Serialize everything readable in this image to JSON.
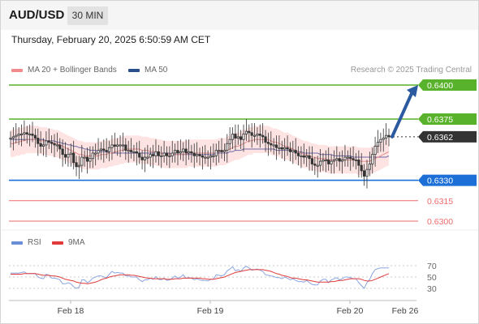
{
  "header": {
    "pair": "AUD/USD",
    "interval": "30 MIN"
  },
  "datetime": "Thursday, February 20, 2025 6:50:59 AM CET",
  "legend": {
    "bollinger": {
      "label": "MA 20 + Bollinger Bands",
      "color": "#f28b8b"
    },
    "ma50": {
      "label": "MA 50",
      "color": "#2b4f8c"
    }
  },
  "credit": "Research © 2025 Trading Central",
  "colors": {
    "green": "#59b22b",
    "blue": "#1b6fd6",
    "red": "#ee6b6b",
    "last": "#333333",
    "arrow": "#2b5aa0",
    "band": "#fddada"
  },
  "levels": [
    {
      "label": "0.6400",
      "value": 0.64,
      "style": "green-tag"
    },
    {
      "label": "0.6375",
      "value": 0.6375,
      "style": "green-tag"
    },
    {
      "label": "0.6362",
      "value": 0.6362,
      "style": "last-tag"
    },
    {
      "label": "0.6330",
      "value": 0.633,
      "style": "blue-tag"
    },
    {
      "label": "0.6315",
      "value": 0.6315,
      "style": "red-text"
    },
    {
      "label": "0.6300",
      "value": 0.63,
      "style": "red-text"
    }
  ],
  "rsi_legend": {
    "rsi": {
      "label": "RSI",
      "color": "#6a8fd8"
    },
    "ma9": {
      "label": "9MA",
      "color": "#e03a3a"
    }
  },
  "rsi_ticks": [
    "70",
    "50",
    "30"
  ],
  "x_labels": [
    "Feb 18",
    "Feb 19",
    "Feb 20",
    "Feb 26"
  ],
  "chart_data": [
    {
      "type": "candlestick",
      "y_scale": {
        "min": 0.63,
        "max": 0.64
      },
      "x_range": {
        "min": 0,
        "max": 152
      },
      "series": [
        {
          "name": "price",
          "close": [
            0.6361,
            0.6362,
            0.6363,
            0.6364,
            0.6364,
            0.6365,
            0.6364,
            0.6364,
            0.6363,
            0.6361,
            0.6357,
            0.6355,
            0.6356,
            0.6359,
            0.6358,
            0.6357,
            0.6356,
            0.6356,
            0.6353,
            0.6349,
            0.6347,
            0.6349,
            0.635,
            0.6343,
            0.634,
            0.6341,
            0.6347,
            0.6347,
            0.6344,
            0.6346,
            0.635,
            0.635,
            0.6352,
            0.6353,
            0.6352,
            0.6351,
            0.6354,
            0.6356,
            0.6355,
            0.6356,
            0.6356,
            0.6356,
            0.6352,
            0.6352,
            0.6351,
            0.6351,
            0.635,
            0.6347,
            0.6345,
            0.6347,
            0.6347,
            0.6349,
            0.6348,
            0.6351,
            0.6348,
            0.6348,
            0.635,
            0.6348,
            0.6348,
            0.635,
            0.6352,
            0.635,
            0.6351,
            0.6353,
            0.635,
            0.6351,
            0.635,
            0.6348,
            0.6349,
            0.6348,
            0.6347,
            0.6347,
            0.6347,
            0.6348,
            0.6348,
            0.6352,
            0.6352,
            0.6351,
            0.6352,
            0.6357,
            0.636,
            0.6364,
            0.6361,
            0.6362,
            0.636,
            0.6364,
            0.6366,
            0.6365,
            0.6363,
            0.6363,
            0.6364,
            0.6363,
            0.6362,
            0.6358,
            0.6357,
            0.6356,
            0.6356,
            0.6354,
            0.6354,
            0.6353,
            0.6354,
            0.6353,
            0.6351,
            0.6352,
            0.635,
            0.6348,
            0.6348,
            0.6347,
            0.6348,
            0.6346,
            0.6342,
            0.6341,
            0.6341,
            0.6344,
            0.6345,
            0.6345,
            0.6342,
            0.6344,
            0.6345,
            0.6346,
            0.6344,
            0.6345,
            0.6347,
            0.6347,
            0.6346,
            0.6345,
            0.6345,
            0.6341,
            0.6337,
            0.6333,
            0.6338,
            0.6342,
            0.6349,
            0.6355,
            0.6358,
            0.636,
            0.6361,
            0.6363,
            0.6362
          ]
        },
        {
          "name": "MA 20 + Bollinger Bands",
          "values": [
            0.6357,
            0.6357,
            0.6358,
            0.6358,
            0.6359,
            0.6359,
            0.636,
            0.636,
            0.636,
            0.636,
            0.636,
            0.6359,
            0.6359,
            0.6359,
            0.6358,
            0.6358,
            0.6357,
            0.6357,
            0.6356,
            0.6355,
            0.6354,
            0.6353,
            0.6352,
            0.6351,
            0.635,
            0.6349,
            0.6349,
            0.6348,
            0.6348,
            0.6348,
            0.6348,
            0.6348,
            0.6348,
            0.6349,
            0.6349,
            0.6349,
            0.635,
            0.635,
            0.6351,
            0.6351,
            0.6352,
            0.6352,
            0.6353,
            0.6353,
            0.6353,
            0.6353,
            0.6353,
            0.6353,
            0.6352,
            0.6352,
            0.6352,
            0.6351,
            0.6351,
            0.6351,
            0.635,
            0.635,
            0.6349,
            0.6349,
            0.6349,
            0.6349,
            0.6349,
            0.6349,
            0.6349,
            0.6349,
            0.6349,
            0.635,
            0.635,
            0.635,
            0.635,
            0.635,
            0.635,
            0.635,
            0.635,
            0.635,
            0.635,
            0.635,
            0.6351,
            0.6351,
            0.6351,
            0.6352,
            0.6353,
            0.6354,
            0.6355,
            0.6355,
            0.6356,
            0.6357,
            0.6358,
            0.6359,
            0.6359,
            0.636,
            0.636,
            0.636,
            0.636,
            0.636,
            0.636,
            0.6359,
            0.6358,
            0.6358,
            0.6357,
            0.6356,
            0.6355,
            0.6355,
            0.6354,
            0.6353,
            0.6352,
            0.6351,
            0.635,
            0.6349,
            0.6349,
            0.6348,
            0.6347,
            0.6347,
            0.6346,
            0.6346,
            0.6346,
            0.6346,
            0.6345,
            0.6345,
            0.6345,
            0.6345,
            0.6345,
            0.6345,
            0.6345,
            0.6345,
            0.6345,
            0.6345,
            0.6345,
            0.6344,
            0.6344,
            0.6344,
            0.6344,
            0.6344,
            0.6345,
            0.6346,
            0.6347,
            0.6348,
            0.6349,
            0.635,
            0.6351
          ]
        },
        {
          "name": "MA 50",
          "values": [
            0.636,
            0.636,
            0.636,
            0.636,
            0.636,
            0.636,
            0.636,
            0.636,
            0.636,
            0.636,
            0.636,
            0.636,
            0.636,
            0.6359,
            0.6359,
            0.6359,
            0.6359,
            0.6358,
            0.6358,
            0.6357,
            0.6357,
            0.6356,
            0.6356,
            0.6355,
            0.6355,
            0.6354,
            0.6354,
            0.6353,
            0.6353,
            0.6352,
            0.6352,
            0.6352,
            0.6351,
            0.6351,
            0.6351,
            0.6351,
            0.635,
            0.635,
            0.635,
            0.635,
            0.635,
            0.635,
            0.635,
            0.635,
            0.635,
            0.635,
            0.635,
            0.635,
            0.635,
            0.635,
            0.635,
            0.635,
            0.635,
            0.635,
            0.635,
            0.635,
            0.635,
            0.635,
            0.635,
            0.6349,
            0.6349,
            0.6349,
            0.6349,
            0.6349,
            0.6349,
            0.6349,
            0.6349,
            0.6349,
            0.6349,
            0.6349,
            0.6349,
            0.6349,
            0.6349,
            0.6349,
            0.6349,
            0.635,
            0.635,
            0.635,
            0.635,
            0.635,
            0.6351,
            0.6351,
            0.6352,
            0.6352,
            0.6352,
            0.6353,
            0.6353,
            0.6353,
            0.6353,
            0.6353,
            0.6353,
            0.6353,
            0.6353,
            0.6353,
            0.6353,
            0.6353,
            0.6353,
            0.6352,
            0.6352,
            0.6352,
            0.6352,
            0.6352,
            0.6352,
            0.6351,
            0.6351,
            0.6351,
            0.6351,
            0.635,
            0.635,
            0.635,
            0.635,
            0.635,
            0.635,
            0.6349,
            0.6349,
            0.6349,
            0.6349,
            0.6349,
            0.6348,
            0.6348,
            0.6348,
            0.6348,
            0.6348,
            0.6348,
            0.6348,
            0.6347,
            0.6347,
            0.6347,
            0.6347,
            0.6347,
            0.6347,
            0.6347,
            0.6347,
            0.6347,
            0.6347,
            0.6347,
            0.6347,
            0.6347,
            0.6348
          ]
        }
      ],
      "projection": {
        "from": 0.6362,
        "to": 0.64
      }
    },
    {
      "type": "line",
      "y_scale": {
        "min": 20,
        "max": 80
      },
      "series": [
        {
          "name": "RSI",
          "values": [
            57,
            57,
            57,
            57,
            58,
            59,
            56,
            56,
            56,
            56,
            50,
            48,
            47,
            55,
            53,
            48,
            48,
            47,
            45,
            38,
            38,
            40,
            38,
            33,
            30,
            32,
            45,
            45,
            40,
            43,
            48,
            50,
            52,
            52,
            50,
            49,
            55,
            60,
            57,
            58,
            57,
            57,
            52,
            52,
            50,
            50,
            50,
            45,
            42,
            45,
            45,
            48,
            46,
            51,
            46,
            45,
            48,
            44,
            45,
            48,
            52,
            48,
            50,
            54,
            48,
            49,
            48,
            45,
            47,
            45,
            44,
            44,
            43,
            46,
            46,
            54,
            53,
            52,
            54,
            61,
            64,
            68,
            61,
            63,
            60,
            66,
            69,
            66,
            62,
            63,
            64,
            62,
            60,
            54,
            53,
            52,
            51,
            49,
            49,
            47,
            50,
            48,
            45,
            47,
            44,
            42,
            42,
            41,
            44,
            40,
            37,
            36,
            36,
            43,
            46,
            46,
            40,
            45,
            47,
            49,
            45,
            47,
            50,
            50,
            49,
            47,
            47,
            40,
            35,
            30,
            40,
            46,
            56,
            63,
            65,
            66,
            66,
            66,
            66
          ]
        },
        {
          "name": "9MA",
          "values": [
            55,
            55,
            55,
            55,
            55,
            56,
            56,
            56,
            56,
            56,
            55,
            54,
            53,
            53,
            53,
            52,
            52,
            51,
            50,
            48,
            46,
            45,
            44,
            43,
            41,
            40,
            39,
            39,
            38,
            39,
            40,
            41,
            43,
            45,
            47,
            48,
            50,
            51,
            52,
            53,
            54,
            54,
            54,
            54,
            53,
            53,
            52,
            51,
            50,
            49,
            48,
            48,
            47,
            47,
            47,
            47,
            47,
            46,
            46,
            46,
            47,
            47,
            47,
            48,
            48,
            48,
            48,
            48,
            48,
            48,
            47,
            47,
            46,
            46,
            46,
            47,
            48,
            49,
            50,
            52,
            54,
            56,
            58,
            59,
            60,
            61,
            62,
            63,
            63,
            63,
            63,
            63,
            63,
            62,
            61,
            60,
            58,
            56,
            55,
            53,
            52,
            51,
            49,
            48,
            48,
            47,
            46,
            45,
            45,
            44,
            43,
            42,
            41,
            41,
            41,
            41,
            41,
            42,
            42,
            43,
            44,
            44,
            45,
            46,
            47,
            47,
            47,
            47,
            46,
            44,
            43,
            43,
            44,
            46,
            48,
            50,
            52,
            54,
            56
          ]
        }
      ],
      "ticks": [
        70,
        50,
        30
      ]
    }
  ]
}
